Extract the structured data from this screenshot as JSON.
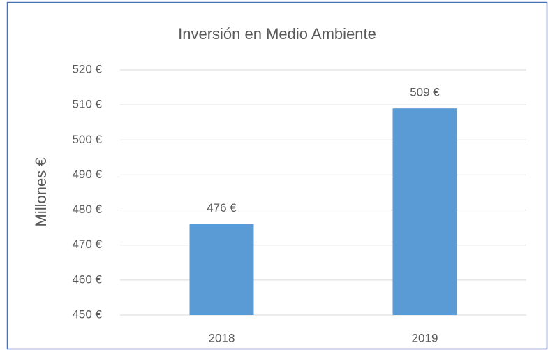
{
  "chart_data": {
    "type": "bar",
    "title": "Inversión en Medio Ambiente",
    "y_label": "Millones €",
    "categories": [
      "2018",
      "2019"
    ],
    "values": [
      476,
      509
    ],
    "value_labels": [
      "476 €",
      "509 €"
    ],
    "color": "#5b9bd5",
    "ylim": [
      450,
      520
    ],
    "yticks": [
      {
        "value": 450,
        "label": "450 €"
      },
      {
        "value": 460,
        "label": "460 €"
      },
      {
        "value": 470,
        "label": "470 €"
      },
      {
        "value": 480,
        "label": "480 €"
      },
      {
        "value": 490,
        "label": "490 €"
      },
      {
        "value": 500,
        "label": "500 €"
      },
      {
        "value": 510,
        "label": "510 €"
      },
      {
        "value": 520,
        "label": "520 €"
      }
    ],
    "grid": true
  }
}
